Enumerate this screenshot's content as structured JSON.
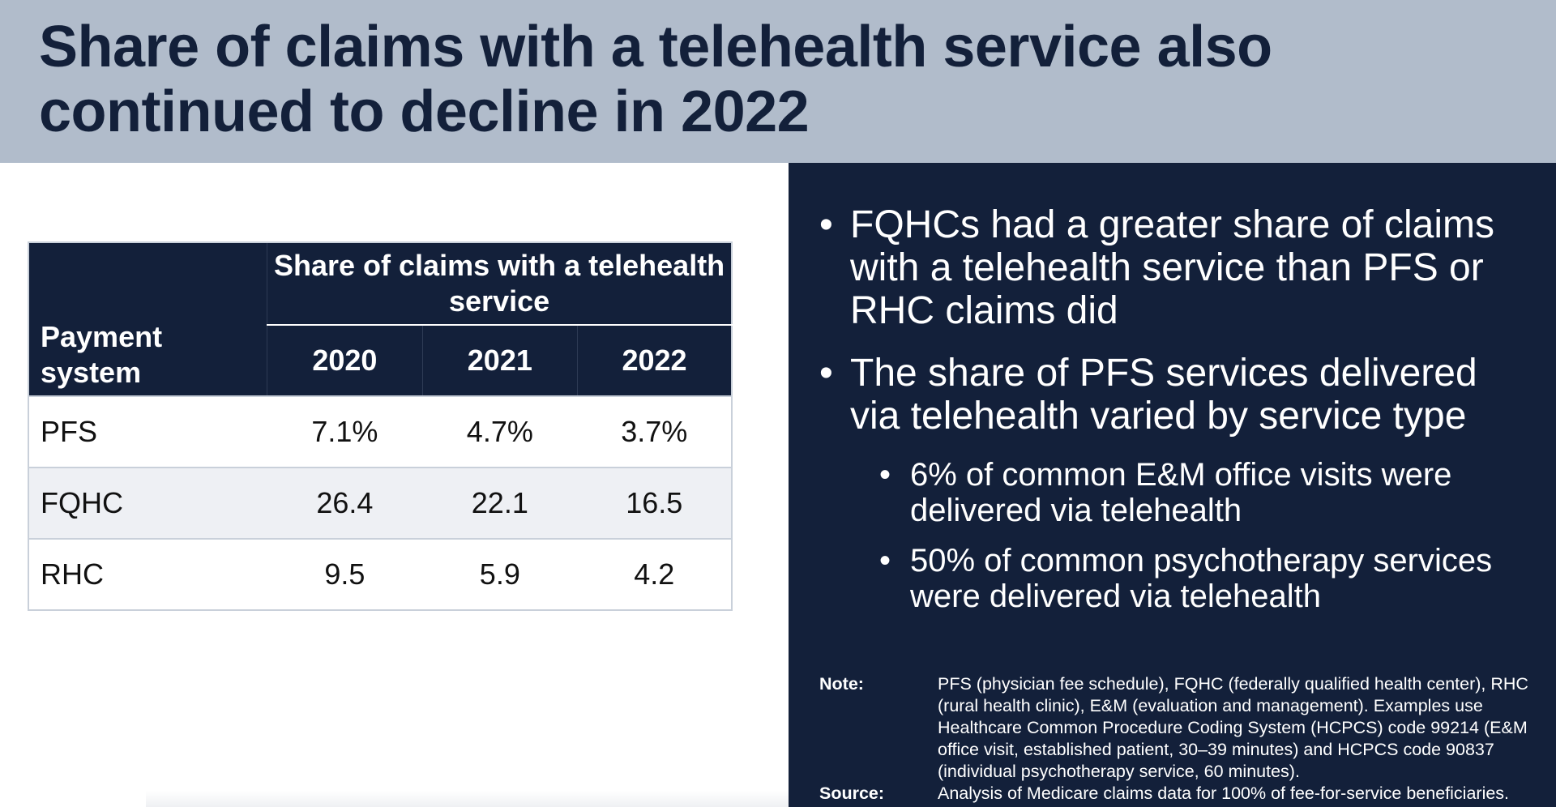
{
  "title": "Share of claims with a telehealth service also continued to decline in 2022",
  "table": {
    "payment_header": "Payment system",
    "group_header": "Share of claims with a telehealth service",
    "years": [
      "2020",
      "2021",
      "2022"
    ],
    "rows": [
      {
        "label": "PFS",
        "values": [
          "7.1%",
          "4.7%",
          "3.7%"
        ]
      },
      {
        "label": "FQHC",
        "values": [
          "26.4",
          "22.1",
          "16.5"
        ]
      },
      {
        "label": "RHC",
        "values": [
          "9.5",
          "5.9",
          "4.2"
        ]
      }
    ]
  },
  "bullets": {
    "b1": "FQHCs had a greater share of claims with a telehealth service than PFS or RHC claims did",
    "b2": "The share of PFS services delivered via telehealth varied by service type",
    "sub1": "6% of common E&M office visits were delivered via telehealth",
    "sub2": "50% of common psychotherapy services were delivered via telehealth",
    "marker": "•"
  },
  "note": {
    "label": "Note:",
    "text": "PFS (physician fee schedule), FQHC (federally qualified health center), RHC (rural health clinic), E&M (evaluation and management). Examples use Healthcare Common Procedure Coding System (HCPCS) code 99214 (E&M office visit, established patient, 30–39 minutes) and HCPCS code 90837 (individual psychotherapy service, 60 minutes)."
  },
  "source": {
    "label": "Source:",
    "text": "Analysis of Medicare claims data for 100% of fee-for-service beneficiaries."
  },
  "colors": {
    "header_bg": "#b1bccb",
    "navy": "#13203a",
    "row_shade": "#eef0f4"
  }
}
